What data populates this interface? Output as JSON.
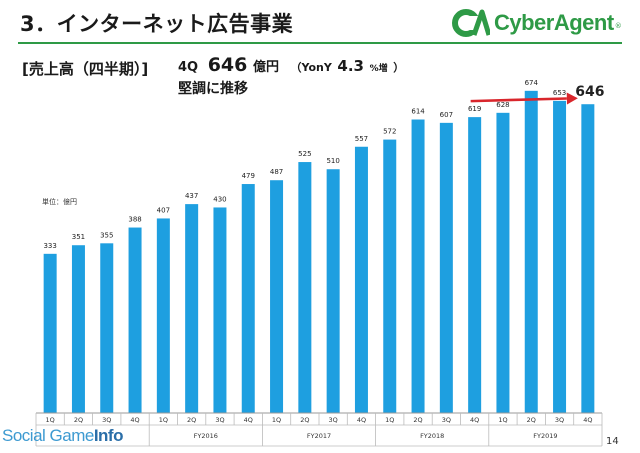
{
  "slide": {
    "title": "3．インターネット広告事業",
    "section_label": "[売上高（四半期）]",
    "headline_quarter": "4Q",
    "headline_value": "646",
    "headline_unit": "億円",
    "headline_yoy_prefix": "（YonY",
    "headline_yoy_value": "4.3",
    "headline_yoy_unit": "%増",
    "headline_yoy_close": "）",
    "headline_line2": "堅調に推移",
    "unit_label": "単位：億円",
    "page_number": "14"
  },
  "logo": {
    "mark_text": "CA",
    "text": "CyberAgent",
    "registered": "®",
    "color": "#2e9a46"
  },
  "watermark": {
    "part1": "Social Game",
    "part2": "Info"
  },
  "colors": {
    "bar": "#1e9fe0",
    "trend_arrow": "#d9262c",
    "title_rule": "#2e9a46"
  },
  "chart_data": {
    "type": "bar",
    "quarters": [
      "1Q",
      "2Q",
      "3Q",
      "4Q",
      "1Q",
      "2Q",
      "3Q",
      "4Q",
      "1Q",
      "2Q",
      "3Q",
      "4Q",
      "1Q",
      "2Q",
      "3Q",
      "4Q",
      "1Q",
      "2Q",
      "3Q",
      "4Q"
    ],
    "fiscal_years": [
      "",
      "FY2016",
      "FY2017",
      "FY2018",
      "FY2019"
    ],
    "values": [
      333,
      351,
      355,
      388,
      407,
      437,
      430,
      479,
      487,
      525,
      510,
      557,
      572,
      614,
      607,
      619,
      628,
      674,
      653,
      646
    ],
    "value_labels": [
      "333",
      "351",
      "355",
      "388",
      "407",
      "437",
      "430",
      "479",
      "487",
      "525",
      "510",
      "557",
      "572",
      "614",
      "607",
      "619",
      "628",
      "674",
      "653",
      "646"
    ],
    "unit": "億円",
    "highlight_last": true,
    "trend_arrow": {
      "from_index": 15,
      "to_index": 19
    }
  }
}
